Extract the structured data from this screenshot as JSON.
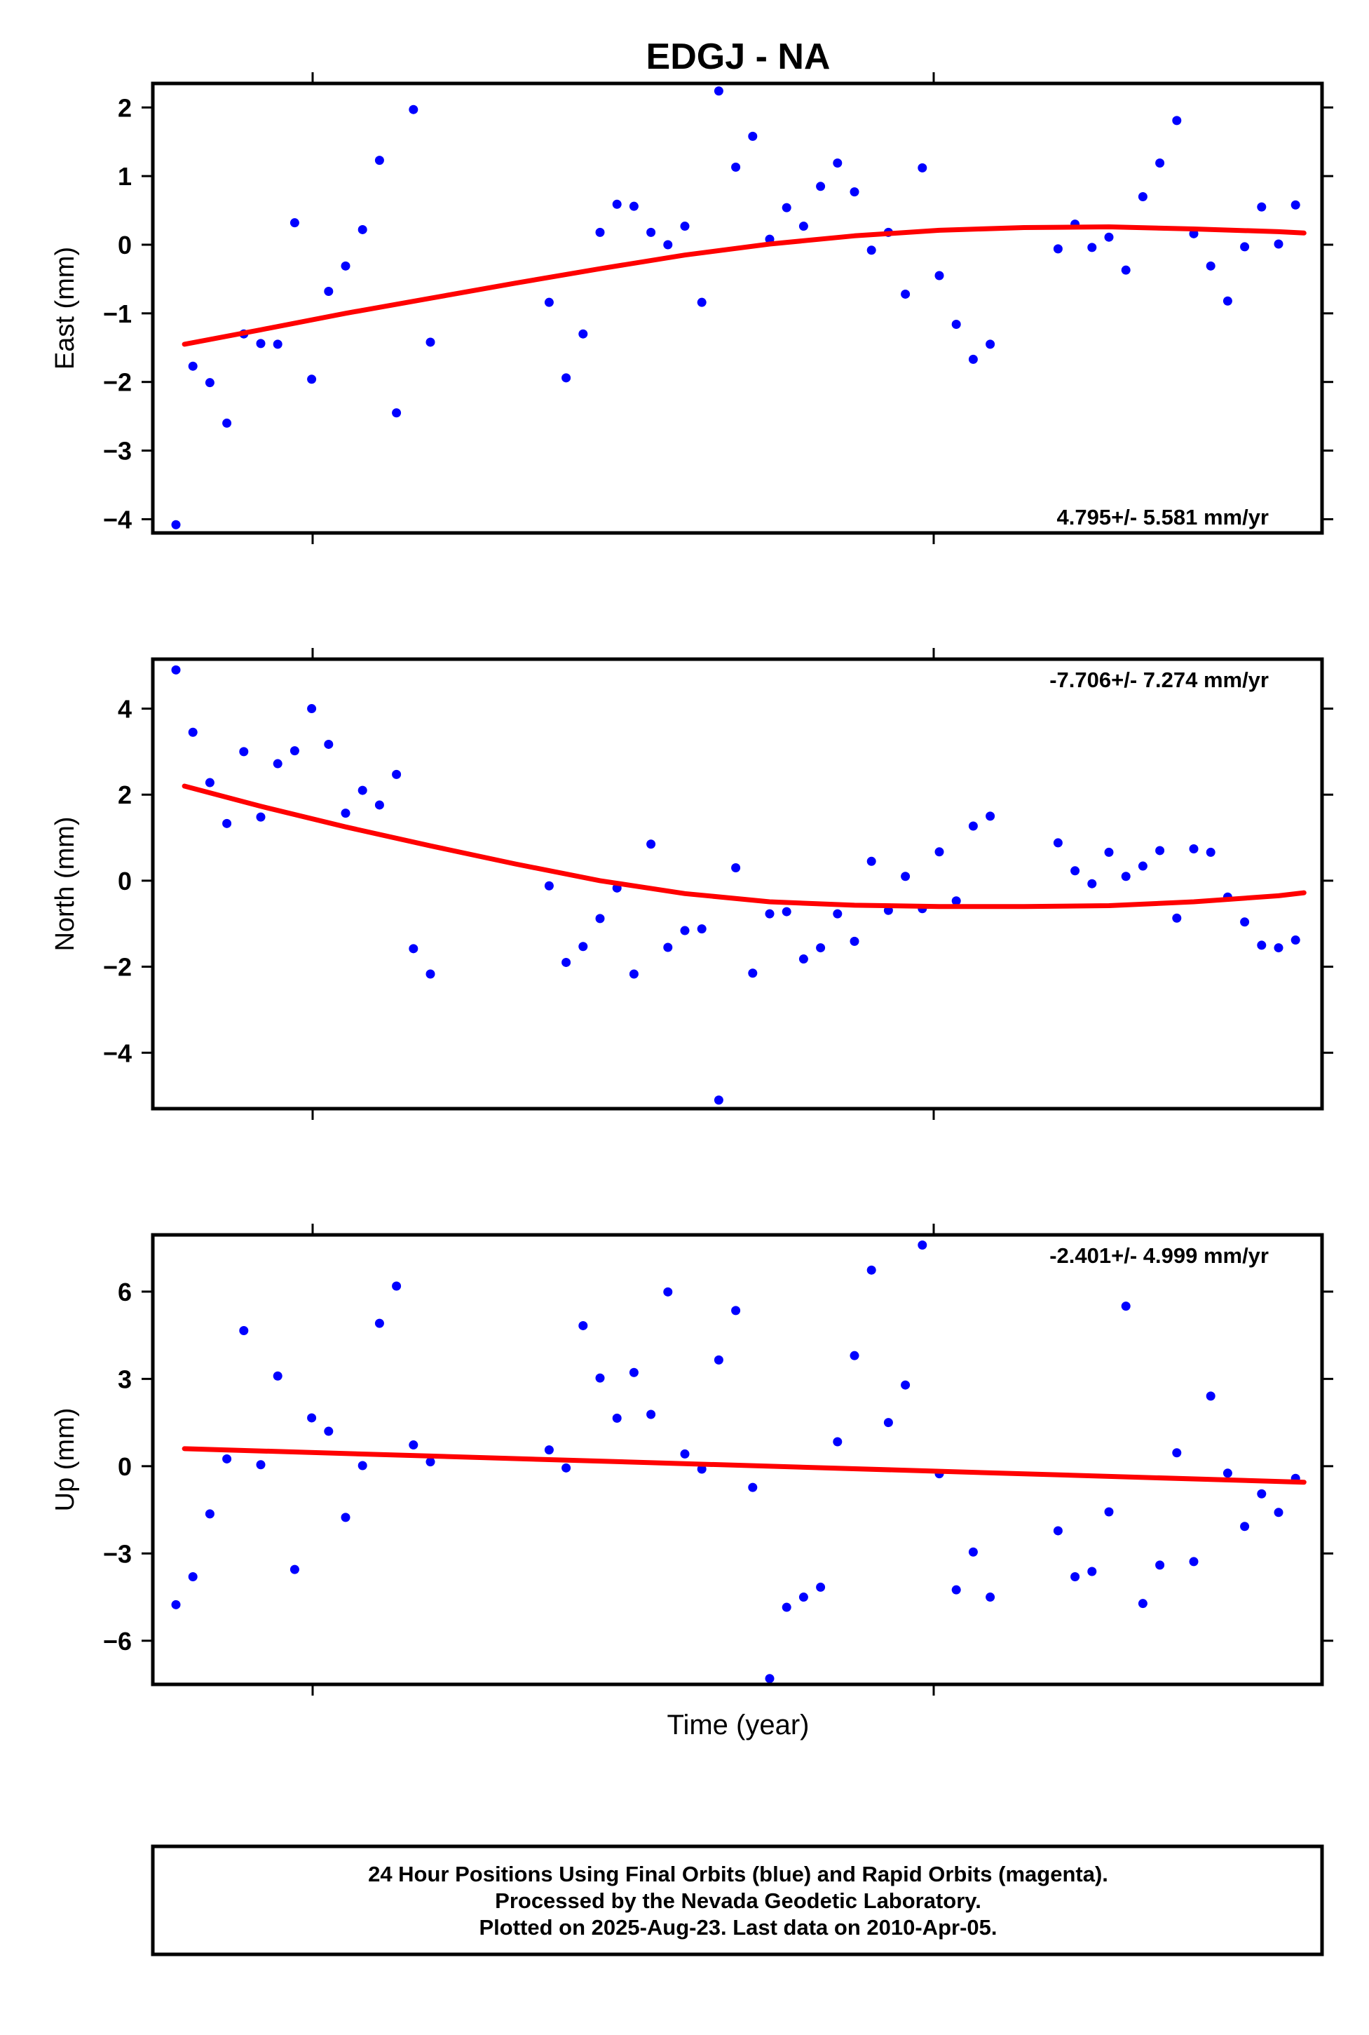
{
  "chart_data": {
    "title": "EDGJ - NA",
    "xlabel": "Time (year)",
    "x_tick_labels": [],
    "colors": {
      "points": "#0000ff",
      "fit": "#ff0000",
      "frame": "#000000"
    },
    "grid": false,
    "panels": [
      {
        "type": "scatter",
        "ylabel": "East (mm)",
        "ylim": [
          -4.2,
          2.35
        ],
        "yticks": [
          2,
          1,
          0,
          -1,
          -2,
          -3,
          -4
        ],
        "ytick_labels": [
          "2",
          "1",
          "0",
          "−1",
          "−2",
          "−3",
          "−4"
        ],
        "rate": "4.795+/- 5.581 mm/yr",
        "rate_position": "bottom-right",
        "x": [
          0,
          1,
          2,
          3,
          4,
          5,
          6,
          7,
          8,
          9,
          10,
          11,
          12,
          13,
          14,
          15,
          22,
          23,
          24,
          25,
          26,
          27,
          28,
          29,
          30,
          31,
          32,
          33,
          34,
          35,
          36,
          37,
          38,
          39,
          40,
          41,
          42,
          43,
          44,
          45,
          46,
          47,
          48,
          52,
          53,
          54,
          55,
          56,
          57,
          58,
          59,
          60,
          61,
          62,
          63,
          64,
          65,
          66
        ],
        "y": [
          -4.08,
          -1.77,
          -2.01,
          -2.6,
          -1.3,
          -1.44,
          -1.45,
          0.32,
          -1.96,
          -0.68,
          -0.31,
          0.22,
          1.23,
          -2.45,
          1.97,
          -1.42,
          -0.84,
          -1.94,
          -1.3,
          0.18,
          0.59,
          0.56,
          0.18,
          0.0,
          0.27,
          -0.84,
          2.24,
          1.13,
          1.58,
          0.08,
          0.54,
          0.27,
          0.85,
          1.19,
          0.77,
          -0.08,
          0.18,
          -0.72,
          1.12,
          -0.45,
          -1.16,
          -1.67,
          -1.45,
          -0.06,
          0.3,
          -0.04,
          0.11,
          -0.37,
          0.7,
          1.19,
          1.81,
          0.16,
          -0.31,
          -0.82,
          -0.03,
          0.55,
          0.01,
          0.58
        ],
        "fit_x": [
          0.5,
          5,
          10,
          15,
          20,
          25,
          30,
          35,
          40,
          45,
          50,
          55,
          60,
          65,
          66.5
        ],
        "fit_y": [
          -1.45,
          -1.24,
          -1.0,
          -0.78,
          -0.56,
          -0.35,
          -0.15,
          0.01,
          0.13,
          0.21,
          0.25,
          0.26,
          0.23,
          0.19,
          0.17
        ]
      },
      {
        "type": "scatter",
        "ylabel": "North (mm)",
        "ylim": [
          -5.3,
          5.15
        ],
        "yticks": [
          4,
          2,
          0,
          -2,
          -4
        ],
        "ytick_labels": [
          "4",
          "2",
          "0",
          "−2",
          "−4"
        ],
        "rate": "-7.706+/- 7.274 mm/yr",
        "rate_position": "top-right",
        "x": [
          0,
          1,
          2,
          3,
          4,
          5,
          6,
          7,
          8,
          9,
          10,
          11,
          12,
          13,
          14,
          15,
          22,
          23,
          24,
          25,
          26,
          27,
          28,
          29,
          30,
          31,
          32,
          33,
          34,
          35,
          36,
          37,
          38,
          39,
          40,
          41,
          42,
          43,
          44,
          45,
          46,
          47,
          48,
          52,
          53,
          54,
          55,
          56,
          57,
          58,
          59,
          60,
          61,
          62,
          63,
          64,
          65,
          66
        ],
        "y": [
          4.9,
          3.45,
          2.28,
          1.33,
          3.0,
          1.48,
          2.72,
          3.02,
          4.0,
          3.17,
          1.57,
          2.1,
          1.76,
          2.47,
          -1.58,
          -2.17,
          -0.12,
          -1.9,
          -1.53,
          -0.88,
          -0.17,
          -2.17,
          0.85,
          -1.55,
          -1.16,
          -1.12,
          -5.1,
          0.3,
          -2.15,
          -0.77,
          -0.72,
          -1.82,
          -1.56,
          -0.77,
          -1.41,
          0.45,
          -0.69,
          0.1,
          -0.65,
          0.67,
          -0.47,
          1.27,
          1.5,
          0.88,
          0.23,
          -0.07,
          0.66,
          0.1,
          0.34,
          0.7,
          -0.87,
          0.74,
          0.66,
          -0.38,
          -0.96,
          -1.5,
          -1.56,
          -1.38
        ],
        "fit_x": [
          0.5,
          5,
          10,
          15,
          20,
          25,
          30,
          35,
          40,
          45,
          50,
          55,
          60,
          65,
          66.5
        ],
        "fit_y": [
          2.2,
          1.73,
          1.25,
          0.81,
          0.39,
          0.0,
          -0.3,
          -0.49,
          -0.57,
          -0.6,
          -0.6,
          -0.58,
          -0.49,
          -0.35,
          -0.28
        ]
      },
      {
        "type": "scatter",
        "ylabel": "Up (mm)",
        "ylim": [
          -7.5,
          7.95
        ],
        "yticks": [
          6,
          3,
          0,
          -3,
          -6
        ],
        "ytick_labels": [
          "6",
          "3",
          "0",
          "−3",
          "−6"
        ],
        "rate": "-2.401+/- 4.999 mm/yr",
        "rate_position": "top-right",
        "x": [
          0,
          1,
          2,
          3,
          4,
          5,
          6,
          7,
          8,
          9,
          10,
          11,
          12,
          13,
          14,
          15,
          22,
          23,
          24,
          25,
          26,
          27,
          28,
          29,
          30,
          31,
          32,
          33,
          34,
          35,
          36,
          37,
          38,
          39,
          40,
          41,
          42,
          43,
          44,
          45,
          46,
          47,
          48,
          52,
          53,
          54,
          55,
          56,
          57,
          58,
          59,
          60,
          61,
          62,
          63,
          64,
          65,
          66
        ],
        "y": [
          -4.76,
          -3.8,
          -1.64,
          0.25,
          4.66,
          0.05,
          3.1,
          -3.55,
          1.66,
          1.2,
          -1.76,
          0.02,
          4.91,
          6.19,
          0.73,
          0.15,
          0.56,
          -0.06,
          4.83,
          3.03,
          1.65,
          3.22,
          1.78,
          5.99,
          0.42,
          -0.1,
          3.65,
          5.35,
          -0.73,
          -7.3,
          -4.85,
          -4.5,
          -4.16,
          0.84,
          3.8,
          6.74,
          1.5,
          2.79,
          7.6,
          -0.26,
          -4.25,
          -2.95,
          -4.5,
          -2.22,
          -3.8,
          -3.62,
          -1.57,
          5.5,
          -4.72,
          -3.4,
          0.46,
          -3.28,
          2.41,
          -0.24,
          -2.07,
          -0.95,
          -1.59,
          -0.42
        ],
        "fit_x": [
          0.5,
          66.5
        ],
        "fit_y": [
          0.6,
          -0.55
        ]
      }
    ]
  },
  "footer": {
    "line1": "24 Hour Positions Using Final Orbits (blue) and Rapid Orbits (magenta).",
    "line2": "Processed by the Nevada Geodetic Laboratory.",
    "line3": "Plotted on 2025-Aug-23. Last data on 2010-Apr-05."
  }
}
